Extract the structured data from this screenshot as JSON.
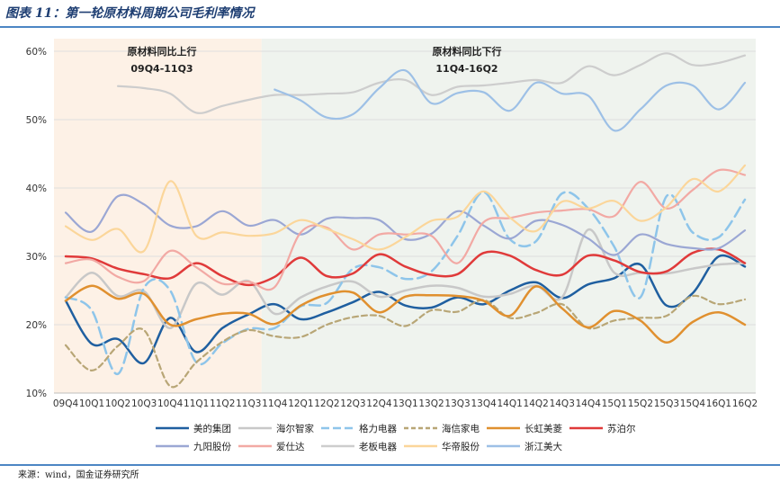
{
  "header": {
    "title": "图表 11：第一轮原材料周期公司毛利率情况"
  },
  "footer": {
    "source": "来源：wind，国金证券研究所"
  },
  "chart_data": {
    "type": "line",
    "title": "第一轮原材料周期公司毛利率情况",
    "xlabel": "",
    "ylabel": "",
    "ylim": [
      10,
      60
    ],
    "yticks": [
      "10%",
      "20%",
      "30%",
      "40%",
      "50%",
      "60%"
    ],
    "categories": [
      "09Q4",
      "10Q1",
      "10Q2",
      "10Q3",
      "10Q4",
      "11Q1",
      "11Q2",
      "11Q3",
      "11Q4",
      "12Q1",
      "12Q2",
      "12Q3",
      "12Q4",
      "13Q1",
      "13Q2",
      "13Q3",
      "13Q4",
      "14Q1",
      "14Q2",
      "14Q3",
      "14Q4",
      "15Q1",
      "15Q2",
      "15Q3",
      "15Q4",
      "16Q1",
      "16Q2"
    ],
    "periods": [
      {
        "label": "原材料同比上行",
        "range": "09Q4-11Q3",
        "color": "#fdf1e6",
        "start": 0,
        "end": 7.5
      },
      {
        "label": "原材料同比下行",
        "range": "11Q4-16Q2",
        "color": "#eff3ee",
        "start": 7.5,
        "end": 26
      }
    ],
    "series": [
      {
        "name": "美的集团",
        "color": "#1f5fa0",
        "dash": "",
        "width": 2.5,
        "values": [
          23.5,
          17.2,
          17.9,
          14.4,
          21.0,
          16.0,
          19.5,
          21.5,
          23.0,
          20.8,
          21.8,
          23.3,
          24.8,
          22.8,
          22.5,
          24.0,
          23.0,
          25.0,
          26.2,
          23.9,
          25.9,
          26.8,
          28.8,
          22.8,
          24.6,
          30.0,
          28.5
        ]
      },
      {
        "name": "海尔智家",
        "color": "#c8c8c8",
        "dash": "",
        "width": 2.5,
        "values": [
          24.0,
          27.6,
          24.2,
          24.9,
          19.5,
          26.0,
          24.4,
          26.4,
          21.6,
          24.0,
          25.6,
          26.3,
          24.1,
          25.0,
          25.7,
          25.4,
          24.1,
          24.5,
          25.7,
          24.0,
          33.9,
          27.6,
          27.6,
          27.5,
          28.2,
          28.8,
          29.0
        ]
      },
      {
        "name": "格力电器",
        "color": "#8ec5ea",
        "dash": "12,6",
        "width": 2.5,
        "values": [
          24.0,
          22.1,
          12.8,
          25.4,
          25.0,
          14.5,
          17.3,
          19.4,
          19.5,
          22.7,
          23.2,
          28.2,
          28.4,
          26.7,
          27.8,
          33.0,
          39.4,
          32.5,
          32.2,
          39.2,
          37.0,
          31.4,
          24.0,
          38.8,
          33.5,
          32.8,
          38.3
        ]
      },
      {
        "name": "海信家电",
        "color": "#b8a676",
        "dash": "6,4",
        "width": 2.2,
        "values": [
          17.0,
          13.3,
          16.9,
          19.2,
          11.0,
          14.5,
          17.5,
          19.2,
          18.3,
          18.2,
          20.0,
          21.1,
          21.3,
          19.8,
          22.1,
          21.9,
          23.6,
          21.0,
          21.7,
          23.0,
          19.5,
          20.6,
          21.0,
          21.3,
          24.2,
          23.0,
          23.7
        ]
      },
      {
        "name": "长虹美菱",
        "color": "#e0902f",
        "dash": "",
        "width": 2.5,
        "values": [
          23.5,
          25.7,
          23.8,
          24.5,
          20.0,
          20.8,
          21.6,
          21.6,
          20.1,
          22.8,
          24.4,
          24.7,
          21.8,
          24.1,
          24.3,
          24.2,
          23.5,
          21.3,
          25.6,
          22.4,
          19.6,
          22.0,
          20.6,
          17.4,
          20.4,
          21.8,
          20.0
        ]
      },
      {
        "name": "苏泊尔",
        "color": "#e03a3a",
        "dash": "",
        "width": 2.5,
        "values": [
          30.0,
          29.7,
          28.2,
          27.4,
          26.8,
          29.0,
          27.1,
          25.8,
          27.0,
          29.8,
          27.1,
          27.5,
          30.3,
          28.5,
          27.3,
          27.4,
          30.5,
          30.1,
          28.0,
          27.3,
          30.1,
          29.4,
          27.7,
          27.8,
          30.5,
          31.0,
          29.0
        ]
      },
      {
        "name": "九阳股份",
        "color": "#9ba7d4",
        "dash": "",
        "width": 2.2,
        "values": [
          36.4,
          33.6,
          38.8,
          37.6,
          34.5,
          34.4,
          36.6,
          34.5,
          35.3,
          33.2,
          35.5,
          35.6,
          35.3,
          32.5,
          33.3,
          36.6,
          34.5,
          32.6,
          35.2,
          34.6,
          32.6,
          30.2,
          33.2,
          31.8,
          31.2,
          31.2,
          33.8
        ]
      },
      {
        "name": "爱仕达",
        "color": "#f2a9a4",
        "dash": "",
        "width": 2.2,
        "values": [
          29.0,
          29.5,
          27.0,
          26.4,
          30.8,
          28.4,
          26.0,
          26.3,
          25.5,
          33.5,
          34.2,
          31.0,
          33.2,
          33.2,
          33.0,
          29.0,
          35.0,
          35.6,
          36.4,
          36.7,
          36.9,
          35.9,
          40.9,
          37.0,
          39.7,
          42.6,
          41.9
        ]
      },
      {
        "name": "老板电器",
        "color": "#cdcdcd",
        "dash": "",
        "width": 2.2,
        "values": [
          null,
          null,
          54.9,
          54.6,
          53.8,
          51.0,
          52.0,
          52.9,
          53.6,
          53.6,
          53.8,
          54.0,
          55.4,
          55.8,
          53.6,
          54.8,
          55.0,
          55.4,
          55.8,
          55.4,
          57.8,
          56.5,
          58.0,
          59.7,
          58.0,
          58.3,
          59.4
        ]
      },
      {
        "name": "华帝股份",
        "color": "#fbd69a",
        "dash": "",
        "width": 2.2,
        "values": [
          34.4,
          32.4,
          34.0,
          30.8,
          41.0,
          33.0,
          33.5,
          33.0,
          33.4,
          35.3,
          34.0,
          32.5,
          31.0,
          32.8,
          35.2,
          35.8,
          39.5,
          35.7,
          33.7,
          38.0,
          37.0,
          38.1,
          35.2,
          37.2,
          41.3,
          39.5,
          43.3
        ]
      },
      {
        "name": "浙江美大",
        "color": "#9dc0e6",
        "dash": "",
        "width": 2.2,
        "values": [
          null,
          null,
          null,
          null,
          null,
          null,
          null,
          null,
          54.4,
          52.8,
          50.3,
          50.8,
          54.6,
          57.2,
          52.4,
          53.9,
          54.0,
          51.3,
          55.4,
          53.8,
          53.5,
          48.4,
          51.5,
          55.0,
          55.0,
          51.5,
          55.4
        ]
      }
    ]
  }
}
